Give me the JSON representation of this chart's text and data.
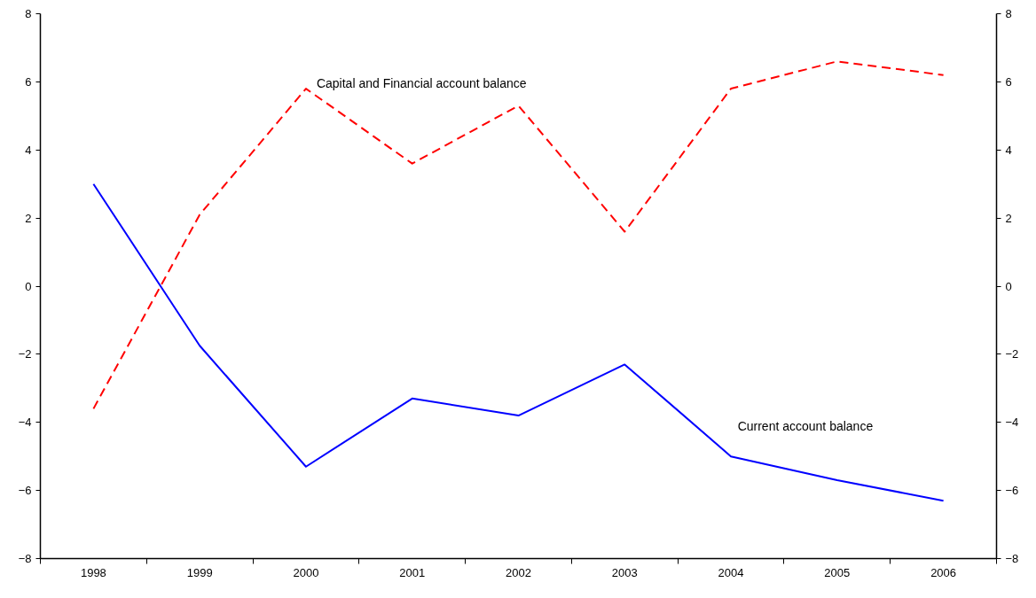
{
  "chart_data": {
    "type": "line",
    "categories": [
      "1998",
      "1999",
      "2000",
      "2001",
      "2002",
      "2003",
      "2004",
      "2005",
      "2006"
    ],
    "series": [
      {
        "name": "Current account balance",
        "color": "#0000ff",
        "line_style": "solid",
        "values": [
          3.0,
          -1.75,
          -5.3,
          -3.3,
          -3.8,
          -2.3,
          -5.0,
          -5.7,
          -6.3
        ]
      },
      {
        "name": "Capital and Financial account balance",
        "color": "#ff0000",
        "line_style": "dashed",
        "values": [
          -3.6,
          2.1,
          5.8,
          3.6,
          5.3,
          1.6,
          5.8,
          6.6,
          6.2
        ]
      }
    ],
    "ylim": [
      -8,
      8
    ],
    "yticks": [
      -8,
      -6,
      -4,
      -2,
      0,
      2,
      4,
      6,
      8
    ],
    "y2lim": [
      -8,
      8
    ],
    "y2ticks": [
      -8,
      -6,
      -4,
      -2,
      0,
      2,
      4,
      6,
      8
    ],
    "grid": false,
    "marker": "none"
  }
}
